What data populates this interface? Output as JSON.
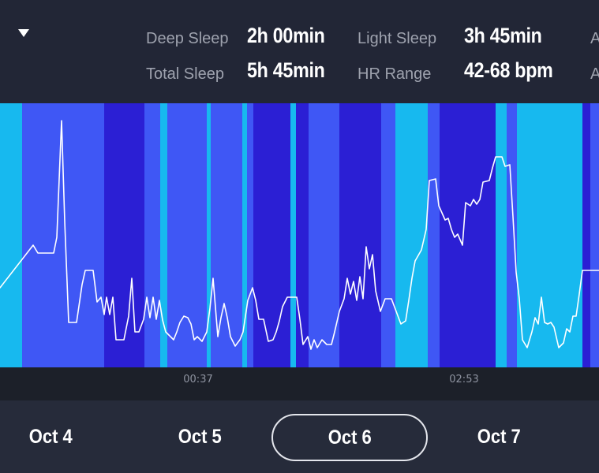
{
  "header": {
    "stats": [
      {
        "label": "Deep Sleep",
        "value": "2h 00min"
      },
      {
        "label": "Light Sleep",
        "value": "3h 45min"
      },
      {
        "label": "Total Sleep",
        "value": "5h 45min"
      },
      {
        "label": "HR Range",
        "value": "42-68 bpm"
      }
    ],
    "cutoff_label_1": "A",
    "cutoff_label_2": "A"
  },
  "colors": {
    "awake": "#17b9ef",
    "light": "#3f57f5",
    "deep": "#2b1fd4",
    "heart_rate_line": "#ffffff"
  },
  "timeline": {
    "stages": [
      "awake",
      "light",
      "deep",
      "light",
      "awake",
      "light",
      "awake",
      "light",
      "awake",
      "light",
      "deep",
      "awake",
      "deep",
      "light",
      "deep",
      "light",
      "awake",
      "light",
      "deep",
      "awake",
      "light",
      "awake",
      "deep",
      "light"
    ],
    "tick_labels": [
      "00:37",
      "02:53"
    ]
  },
  "dates": {
    "items": [
      "Oct 4",
      "Oct 5",
      "Oct 6",
      "Oct 7"
    ],
    "selected": "Oct 6"
  }
}
